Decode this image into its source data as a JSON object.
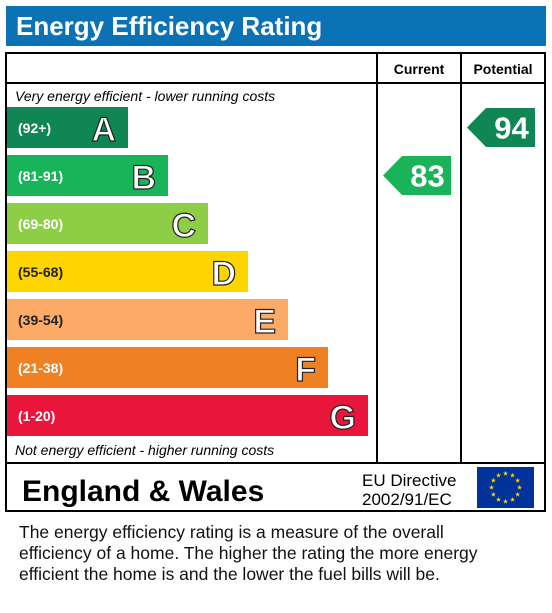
{
  "header": {
    "title": "Energy Efficiency Rating"
  },
  "chart_data": {
    "type": "bar",
    "title": "Energy Efficiency Rating",
    "columns": [
      "Current",
      "Potential"
    ],
    "top_note": "Very energy efficient - lower running costs",
    "bottom_note": "Not energy efficient - higher running costs",
    "bands": [
      {
        "letter": "A",
        "range": "(92+)",
        "color": "#108654"
      },
      {
        "letter": "B",
        "range": "(81-91)",
        "color": "#19b459"
      },
      {
        "letter": "C",
        "range": "(69-80)",
        "color": "#8dce46"
      },
      {
        "letter": "D",
        "range": "(55-68)",
        "color": "#ffd500"
      },
      {
        "letter": "E",
        "range": "(39-54)",
        "color": "#fcaa65"
      },
      {
        "letter": "F",
        "range": "(21-38)",
        "color": "#ef8023"
      },
      {
        "letter": "G",
        "range": "(1-20)",
        "color": "#e9153b"
      }
    ],
    "current": {
      "value": 83,
      "band": "B",
      "color": "#19b459"
    },
    "potential": {
      "value": 94,
      "band": "A",
      "color": "#108654"
    },
    "region": "England & Wales",
    "directive": [
      "EU Directive",
      "2002/91/EC"
    ],
    "eu_flag": {
      "icon": "eu-flag-icon",
      "background": "#003399",
      "stars": "#ffcc00"
    }
  },
  "footer": {
    "lines": [
      "The energy efficiency rating is a measure of the overall",
      "efficiency of a home.  The higher the rating the more energy",
      "efficient the home is and the lower the fuel bills will be."
    ]
  }
}
